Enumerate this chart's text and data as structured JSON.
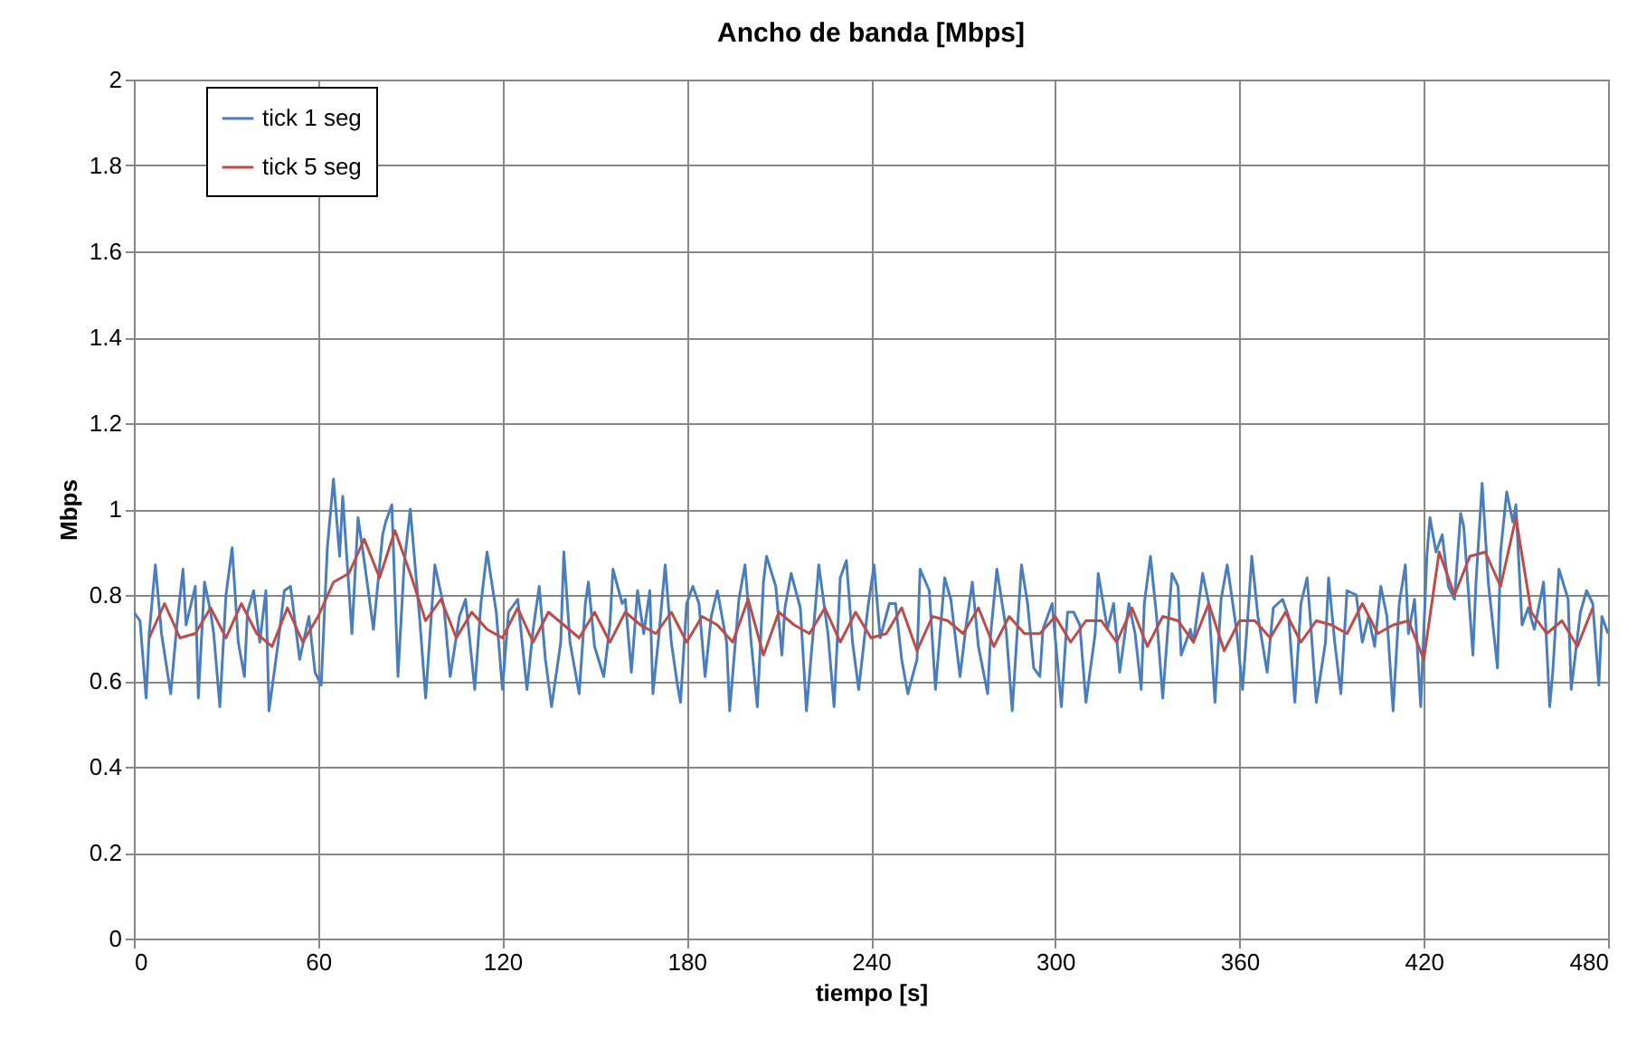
{
  "chart_data": {
    "type": "line",
    "title": "Ancho de banda [Mbps]",
    "xlabel": "tiempo [s]",
    "ylabel": "Mbps",
    "xlim": [
      0,
      480
    ],
    "xticks": [
      0,
      60,
      120,
      180,
      240,
      300,
      360,
      420,
      480
    ],
    "ylim": [
      0,
      2
    ],
    "yticks": [
      0,
      0.2,
      0.4,
      0.6,
      0.8,
      1,
      1.2,
      1.4,
      1.6,
      1.8,
      2
    ],
    "grid": true,
    "legend": "top left",
    "marker": "none",
    "line_style": "solid",
    "series": [
      {
        "name": "tick 1 seg",
        "color": "#4a7ebb",
        "x": [
          0,
          2,
          4,
          5,
          7,
          9,
          12,
          14,
          16,
          17,
          20,
          21,
          23,
          25,
          26,
          28,
          30,
          32,
          34,
          36,
          37,
          39,
          41,
          43,
          44,
          47,
          49,
          51,
          54,
          57,
          59,
          61,
          63,
          65,
          67,
          68,
          71,
          73,
          75,
          78,
          81,
          82,
          84,
          86,
          88,
          90,
          93,
          95,
          98,
          101,
          103,
          106,
          108,
          111,
          113,
          115,
          118,
          120,
          122,
          125,
          128,
          130,
          132,
          134,
          136,
          139,
          140,
          142,
          145,
          147,
          148,
          150,
          153,
          155,
          156,
          159,
          160,
          162,
          164,
          166,
          168,
          169,
          171,
          173,
          175,
          177,
          178,
          180,
          182,
          184,
          186,
          188,
          190,
          193,
          194,
          197,
          199,
          201,
          203,
          205,
          206,
          209,
          211,
          212,
          214,
          217,
          219,
          222,
          223,
          226,
          228,
          230,
          232,
          234,
          236,
          239,
          241,
          243,
          246,
          248,
          250,
          252,
          255,
          256,
          259,
          261,
          264,
          266,
          269,
          271,
          273,
          275,
          278,
          279,
          281,
          284,
          286,
          289,
          291,
          293,
          295,
          296,
          299,
          302,
          304,
          306,
          308,
          310,
          313,
          314,
          317,
          319,
          321,
          324,
          326,
          328,
          329,
          331,
          333,
          335,
          338,
          340,
          341,
          344,
          345,
          348,
          350,
          352,
          354,
          356,
          359,
          361,
          363,
          364,
          366,
          369,
          371,
          374,
          376,
          378,
          380,
          382,
          383,
          385,
          388,
          389,
          391,
          393,
          395,
          398,
          400,
          402,
          404,
          406,
          408,
          410,
          412,
          414,
          415,
          417,
          419,
          421,
          422,
          424,
          426,
          428,
          430,
          432,
          433,
          436,
          437,
          439,
          441,
          444,
          445,
          447,
          449,
          450,
          452,
          454,
          456,
          459,
          461,
          462,
          464,
          467,
          468,
          471,
          473,
          475,
          477,
          478,
          480
        ],
        "values": [
          0.76,
          0.74,
          0.56,
          0.71,
          0.87,
          0.71,
          0.57,
          0.73,
          0.86,
          0.73,
          0.82,
          0.56,
          0.83,
          0.76,
          0.71,
          0.54,
          0.8,
          0.91,
          0.69,
          0.61,
          0.76,
          0.81,
          0.69,
          0.81,
          0.53,
          0.69,
          0.81,
          0.82,
          0.65,
          0.75,
          0.62,
          0.59,
          0.91,
          1.07,
          0.89,
          1.03,
          0.71,
          0.98,
          0.88,
          0.72,
          0.94,
          0.97,
          1.01,
          0.61,
          0.87,
          1.0,
          0.75,
          0.56,
          0.87,
          0.77,
          0.61,
          0.75,
          0.79,
          0.58,
          0.78,
          0.9,
          0.76,
          0.58,
          0.76,
          0.79,
          0.58,
          0.72,
          0.82,
          0.65,
          0.54,
          0.69,
          0.9,
          0.69,
          0.57,
          0.78,
          0.83,
          0.68,
          0.61,
          0.73,
          0.86,
          0.78,
          0.79,
          0.62,
          0.81,
          0.71,
          0.81,
          0.57,
          0.71,
          0.87,
          0.69,
          0.59,
          0.55,
          0.78,
          0.82,
          0.78,
          0.61,
          0.75,
          0.81,
          0.69,
          0.53,
          0.79,
          0.87,
          0.69,
          0.54,
          0.83,
          0.89,
          0.82,
          0.66,
          0.77,
          0.85,
          0.77,
          0.53,
          0.78,
          0.87,
          0.71,
          0.54,
          0.84,
          0.88,
          0.69,
          0.58,
          0.77,
          0.87,
          0.7,
          0.78,
          0.78,
          0.65,
          0.57,
          0.65,
          0.86,
          0.81,
          0.58,
          0.84,
          0.79,
          0.61,
          0.73,
          0.83,
          0.68,
          0.57,
          0.71,
          0.86,
          0.72,
          0.53,
          0.87,
          0.78,
          0.63,
          0.61,
          0.72,
          0.78,
          0.54,
          0.76,
          0.76,
          0.73,
          0.55,
          0.71,
          0.85,
          0.72,
          0.78,
          0.62,
          0.78,
          0.71,
          0.58,
          0.78,
          0.89,
          0.75,
          0.56,
          0.85,
          0.82,
          0.66,
          0.72,
          0.69,
          0.85,
          0.78,
          0.55,
          0.79,
          0.87,
          0.72,
          0.58,
          0.78,
          0.89,
          0.75,
          0.62,
          0.77,
          0.79,
          0.75,
          0.55,
          0.78,
          0.84,
          0.75,
          0.55,
          0.69,
          0.84,
          0.69,
          0.57,
          0.81,
          0.8,
          0.69,
          0.75,
          0.68,
          0.82,
          0.75,
          0.53,
          0.78,
          0.87,
          0.71,
          0.79,
          0.54,
          0.89,
          0.98,
          0.9,
          0.94,
          0.82,
          0.79,
          0.99,
          0.96,
          0.66,
          0.83,
          1.06,
          0.83,
          0.63,
          0.9,
          1.04,
          0.97,
          1.01,
          0.73,
          0.77,
          0.72,
          0.83,
          0.54,
          0.62,
          0.86,
          0.79,
          0.58,
          0.76,
          0.81,
          0.78,
          0.59,
          0.75,
          0.71
        ]
      },
      {
        "name": "tick 5 seg",
        "color": "#be4b48",
        "x": [
          5,
          10,
          15,
          20,
          25,
          30,
          35,
          40,
          45,
          50,
          55,
          60,
          65,
          70,
          75,
          80,
          85,
          90,
          95,
          100,
          105,
          110,
          115,
          120,
          125,
          130,
          135,
          140,
          145,
          150,
          155,
          160,
          165,
          170,
          175,
          180,
          185,
          190,
          195,
          200,
          205,
          210,
          215,
          220,
          225,
          230,
          235,
          240,
          245,
          250,
          255,
          260,
          265,
          270,
          275,
          280,
          285,
          290,
          295,
          300,
          305,
          310,
          315,
          320,
          325,
          330,
          335,
          340,
          345,
          350,
          355,
          360,
          365,
          370,
          375,
          380,
          385,
          390,
          395,
          400,
          405,
          410,
          415,
          420,
          425,
          430,
          435,
          440,
          445,
          450,
          455,
          460,
          465,
          470,
          475
        ],
        "values": [
          0.7,
          0.78,
          0.7,
          0.71,
          0.77,
          0.7,
          0.78,
          0.71,
          0.68,
          0.77,
          0.69,
          0.75,
          0.83,
          0.85,
          0.93,
          0.84,
          0.95,
          0.85,
          0.74,
          0.79,
          0.7,
          0.76,
          0.72,
          0.7,
          0.77,
          0.69,
          0.76,
          0.73,
          0.7,
          0.76,
          0.69,
          0.76,
          0.73,
          0.71,
          0.76,
          0.69,
          0.75,
          0.73,
          0.69,
          0.79,
          0.66,
          0.76,
          0.73,
          0.71,
          0.77,
          0.69,
          0.76,
          0.7,
          0.71,
          0.77,
          0.67,
          0.75,
          0.74,
          0.71,
          0.77,
          0.68,
          0.75,
          0.71,
          0.71,
          0.75,
          0.69,
          0.74,
          0.74,
          0.69,
          0.77,
          0.68,
          0.75,
          0.74,
          0.69,
          0.78,
          0.67,
          0.74,
          0.74,
          0.7,
          0.76,
          0.69,
          0.74,
          0.73,
          0.71,
          0.78,
          0.71,
          0.73,
          0.74,
          0.65,
          0.9,
          0.8,
          0.89,
          0.9,
          0.82,
          0.98,
          0.76,
          0.71,
          0.74,
          0.68,
          0.77
        ]
      }
    ]
  }
}
